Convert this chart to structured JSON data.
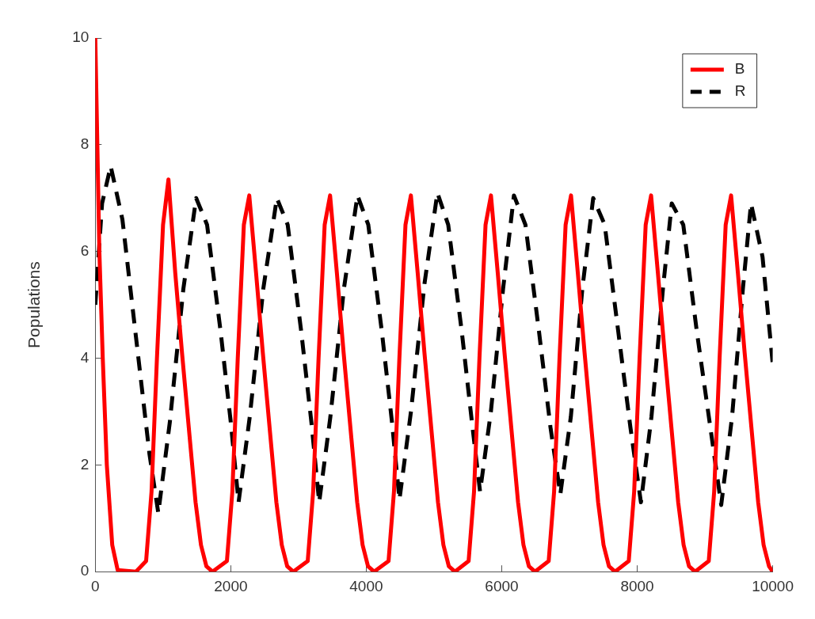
{
  "chart_data": {
    "type": "line",
    "ylabel": "Populations",
    "xlim": [
      0,
      10000
    ],
    "xticks": [
      0,
      2000,
      4000,
      6000,
      8000,
      10000
    ],
    "ylim": [
      0,
      10
    ],
    "yticks": [
      0,
      2,
      4,
      6,
      8,
      10
    ],
    "grid": false,
    "legend": "top right",
    "marker": "none",
    "series": [
      {
        "name": "B",
        "color": "#ff0000",
        "line_style": "solid",
        "x": [
          0,
          30,
          60,
          110,
          170,
          250,
          330,
          600,
          750,
          830,
          910,
          1000,
          1080,
          1180,
          1280,
          1380,
          1480,
          1560,
          1640,
          1730,
          1943,
          2023,
          2103,
          2193,
          2273,
          2373,
          2473,
          2573,
          2673,
          2753,
          2833,
          2923,
          3136,
          3216,
          3296,
          3386,
          3466,
          3566,
          3666,
          3766,
          3866,
          3946,
          4026,
          4116,
          4329,
          4409,
          4489,
          4579,
          4659,
          4759,
          4859,
          4959,
          5059,
          5139,
          5219,
          5309,
          5511,
          5591,
          5671,
          5761,
          5841,
          5941,
          6041,
          6141,
          6241,
          6321,
          6401,
          6491,
          6693,
          6773,
          6853,
          6943,
          7023,
          7123,
          7223,
          7323,
          7423,
          7503,
          7583,
          7673,
          7875,
          7955,
          8035,
          8125,
          8205,
          8305,
          8405,
          8505,
          8605,
          8685,
          8765,
          8855,
          9056,
          9136,
          9216,
          9306,
          9386,
          9486,
          9586,
          9686,
          9786,
          9866,
          9946,
          10000
        ],
        "values": [
          10,
          8,
          6,
          4,
          2,
          0.5,
          0.03,
          0,
          0.2,
          1.5,
          4,
          6.5,
          7.35,
          5.6,
          4.1,
          2.7,
          1.3,
          0.5,
          0.1,
          0,
          0.2,
          1.5,
          4,
          6.5,
          7.05,
          5.6,
          4.1,
          2.7,
          1.3,
          0.5,
          0.1,
          0,
          0.2,
          1.5,
          4,
          6.5,
          7.05,
          5.6,
          4.1,
          2.7,
          1.3,
          0.5,
          0.1,
          0,
          0.2,
          1.5,
          4,
          6.5,
          7.05,
          5.6,
          4.1,
          2.7,
          1.3,
          0.5,
          0.1,
          0,
          0.2,
          1.5,
          4,
          6.5,
          7.05,
          5.6,
          4.1,
          2.7,
          1.3,
          0.5,
          0.1,
          0,
          0.2,
          1.5,
          4,
          6.5,
          7.05,
          5.6,
          4.1,
          2.7,
          1.3,
          0.5,
          0.1,
          0,
          0.2,
          1.5,
          4,
          6.5,
          7.05,
          5.6,
          4.1,
          2.7,
          1.3,
          0.5,
          0.1,
          0,
          0.2,
          1.5,
          4,
          6.5,
          7.05,
          5.6,
          4.1,
          2.7,
          1.3,
          0.5,
          0.1,
          0
        ]
      },
      {
        "name": "R",
        "color": "#000000",
        "line_style": "dashed",
        "x": [
          0,
          100,
          227,
          400,
          600,
          800,
          930,
          1100,
          1300,
          1489,
          1650,
          1850,
          2000,
          2115,
          2280,
          2480,
          2680,
          2840,
          3040,
          3190,
          3305,
          3470,
          3670,
          3870,
          4030,
          4230,
          4380,
          4490,
          4660,
          4860,
          5050,
          5210,
          5410,
          5560,
          5680,
          5840,
          6020,
          6180,
          6350,
          6550,
          6720,
          6865,
          7020,
          7190,
          7350,
          7520,
          7720,
          7900,
          8055,
          8210,
          8380,
          8510,
          8680,
          8880,
          9080,
          9240,
          9400,
          9560,
          9680,
          9850,
          10000
        ],
        "values": [
          5,
          6.9,
          7.6,
          6.6,
          4.4,
          2.2,
          1.1,
          2.8,
          5.3,
          7,
          6.5,
          4.5,
          2.8,
          1.3,
          2.9,
          5.3,
          7,
          6.5,
          4.5,
          2.8,
          1.3,
          2.9,
          5.3,
          7.05,
          6.5,
          4.5,
          2.8,
          1.35,
          3,
          5.4,
          7.1,
          6.5,
          4.5,
          2.8,
          1.5,
          3,
          5.3,
          7.05,
          6.5,
          4.5,
          2.7,
          1.45,
          2.9,
          5.3,
          7,
          6.5,
          4.5,
          2.7,
          1.3,
          2.9,
          5.3,
          6.9,
          6.5,
          4.5,
          2.7,
          1.25,
          2.9,
          5.3,
          6.9,
          5.9,
          3.9
        ]
      }
    ]
  }
}
